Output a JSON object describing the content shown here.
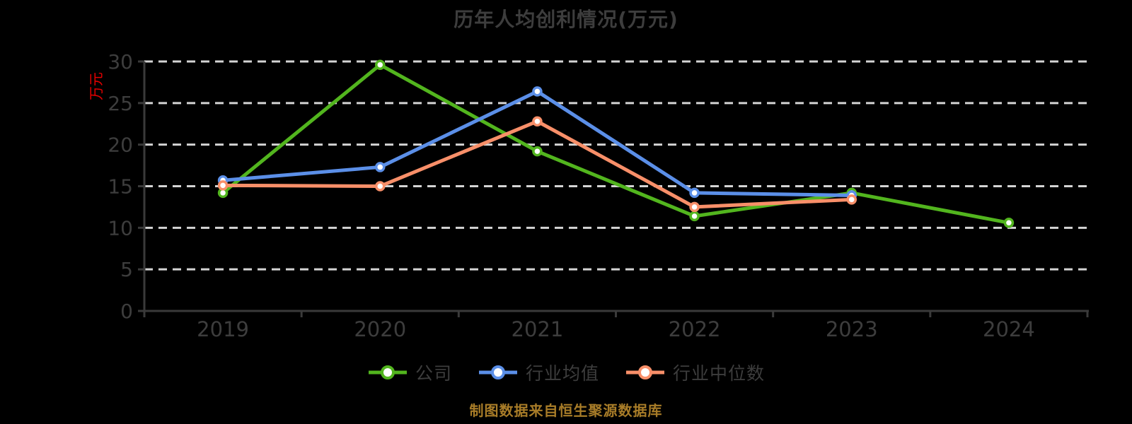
{
  "title": "历年人均创利情况(万元)",
  "caption": "制图数据来自恒生聚源数据库",
  "chart_data": {
    "type": "line",
    "title": "历年人均创利情况(万元)",
    "xlabel": "",
    "ylabel": "万元",
    "ylim": [
      0,
      30
    ],
    "y_ticks": [
      0,
      5,
      10,
      15,
      20,
      25,
      30
    ],
    "grid": "horizontal-dashed",
    "legend_position": "bottom",
    "categories": [
      "2019",
      "2020",
      "2021",
      "2022",
      "2023",
      "2024"
    ],
    "series": [
      {
        "name": "公司",
        "color": "#52b51e",
        "values": [
          14.2,
          29.6,
          19.2,
          11.4,
          14.2,
          10.6
        ]
      },
      {
        "name": "行业均值",
        "color": "#5b8fe8",
        "values": [
          15.7,
          17.3,
          26.4,
          14.2,
          13.9,
          null
        ]
      },
      {
        "name": "行业中位数",
        "color": "#f88f69",
        "values": [
          15.1,
          15.0,
          22.8,
          12.5,
          13.4,
          null
        ]
      }
    ]
  },
  "colors": {
    "background": "#000000",
    "title_text": "#3d3d3d",
    "axis_line": "#3a3a3a",
    "axis_label": "#3d3d3d",
    "gridline": "#d4d4d4",
    "ylabel_text": "#e60000",
    "legend_text": "#3d3d3d",
    "caption_text": "#a87c28",
    "marker_fill": "#ffffff"
  }
}
